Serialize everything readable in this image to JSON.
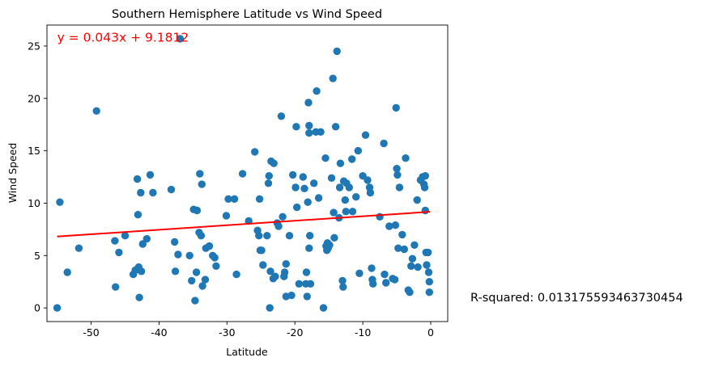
{
  "chart_data": {
    "type": "scatter",
    "title": "Southern Hemisphere Latitude vs Wind Speed",
    "xlabel": "Latitude",
    "ylabel": "Wind Speed",
    "xlim": [
      -56.5,
      2.5
    ],
    "ylim": [
      -1.3,
      27
    ],
    "xticks": [
      -50,
      -40,
      -30,
      -20,
      -10,
      0
    ],
    "yticks": [
      0,
      5,
      10,
      15,
      20,
      25
    ],
    "grid": false,
    "point_color": "#1f77b4",
    "regression": {
      "slope": 0.043,
      "intercept": 9.1812,
      "x_range": [
        -55,
        -0.1
      ],
      "color": "#ff0000",
      "equation_text": "y = 0.043x + 9.1812",
      "equation_position": [
        -55,
        25.8
      ]
    },
    "r_squared_text": "R-squared: 0.013175593463730454",
    "points": [
      [
        -55.0,
        0.0
      ],
      [
        -54.6,
        10.1
      ],
      [
        -53.5,
        3.4
      ],
      [
        -51.8,
        5.7
      ],
      [
        -49.2,
        18.8
      ],
      [
        -46.5,
        6.4
      ],
      [
        -46.4,
        2.0
      ],
      [
        -45.9,
        5.3
      ],
      [
        -45.0,
        6.9
      ],
      [
        -43.8,
        3.2
      ],
      [
        -43.5,
        3.6
      ],
      [
        -43.2,
        12.3
      ],
      [
        -43.1,
        8.9
      ],
      [
        -43.0,
        3.9
      ],
      [
        -42.9,
        1.0
      ],
      [
        -42.7,
        11.0
      ],
      [
        -42.6,
        3.5
      ],
      [
        -42.4,
        6.1
      ],
      [
        -41.8,
        6.6
      ],
      [
        -41.3,
        12.7
      ],
      [
        -40.9,
        11.0
      ],
      [
        -38.2,
        11.3
      ],
      [
        -37.7,
        6.3
      ],
      [
        -37.6,
        3.5
      ],
      [
        -37.2,
        5.1
      ],
      [
        -36.9,
        25.7
      ],
      [
        -35.5,
        5.0
      ],
      [
        -35.2,
        2.6
      ],
      [
        -34.9,
        9.4
      ],
      [
        -34.7,
        0.7
      ],
      [
        -34.5,
        3.4
      ],
      [
        -34.4,
        9.3
      ],
      [
        -34.1,
        7.2
      ],
      [
        -34.0,
        12.8
      ],
      [
        -33.8,
        6.9
      ],
      [
        -33.7,
        11.8
      ],
      [
        -33.6,
        2.1
      ],
      [
        -33.2,
        2.7
      ],
      [
        -33.1,
        5.7
      ],
      [
        -32.6,
        5.9
      ],
      [
        -32.1,
        5.0
      ],
      [
        -31.8,
        4.8
      ],
      [
        -31.6,
        4.0
      ],
      [
        -30.1,
        8.8
      ],
      [
        -29.8,
        10.4
      ],
      [
        -28.9,
        10.4
      ],
      [
        -28.6,
        3.2
      ],
      [
        -27.7,
        12.8
      ],
      [
        -26.8,
        8.3
      ],
      [
        -25.9,
        14.9
      ],
      [
        -25.5,
        7.4
      ],
      [
        -25.3,
        6.9
      ],
      [
        -25.2,
        10.4
      ],
      [
        -25.1,
        5.5
      ],
      [
        -24.9,
        5.5
      ],
      [
        -24.7,
        4.1
      ],
      [
        -24.1,
        6.9
      ],
      [
        -23.9,
        11.9
      ],
      [
        -23.8,
        12.6
      ],
      [
        -23.7,
        0.0
      ],
      [
        -23.6,
        3.5
      ],
      [
        -23.5,
        14.0
      ],
      [
        -23.2,
        2.8
      ],
      [
        -23.1,
        13.8
      ],
      [
        -22.9,
        3.0
      ],
      [
        -22.6,
        8.1
      ],
      [
        -22.4,
        7.8
      ],
      [
        -22.0,
        18.3
      ],
      [
        -21.8,
        8.7
      ],
      [
        -21.6,
        3.0
      ],
      [
        -21.5,
        3.4
      ],
      [
        -21.3,
        4.2
      ],
      [
        -21.3,
        1.1
      ],
      [
        -20.8,
        6.9
      ],
      [
        -20.5,
        1.2
      ],
      [
        -20.3,
        12.7
      ],
      [
        -19.9,
        11.5
      ],
      [
        -19.8,
        17.3
      ],
      [
        -19.7,
        9.6
      ],
      [
        -19.4,
        2.3
      ],
      [
        -18.8,
        12.5
      ],
      [
        -18.6,
        11.4
      ],
      [
        -18.4,
        2.3
      ],
      [
        -18.3,
        3.4
      ],
      [
        -18.2,
        1.1
      ],
      [
        -18.1,
        10.1
      ],
      [
        -18.0,
        19.6
      ],
      [
        -17.9,
        17.4
      ],
      [
        -17.9,
        16.7
      ],
      [
        -17.9,
        5.7
      ],
      [
        -17.8,
        6.9
      ],
      [
        -17.7,
        2.3
      ],
      [
        -17.2,
        11.9
      ],
      [
        -16.9,
        16.8
      ],
      [
        -16.8,
        20.7
      ],
      [
        -16.5,
        10.5
      ],
      [
        -16.2,
        16.8
      ],
      [
        -15.8,
        0.0
      ],
      [
        -15.5,
        14.3
      ],
      [
        -15.4,
        5.9
      ],
      [
        -15.3,
        5.5
      ],
      [
        -15.2,
        6.2
      ],
      [
        -15.1,
        5.7
      ],
      [
        -14.9,
        6.0
      ],
      [
        -14.6,
        12.4
      ],
      [
        -14.4,
        21.9
      ],
      [
        -14.3,
        9.1
      ],
      [
        -14.2,
        6.7
      ],
      [
        -14.0,
        17.3
      ],
      [
        -13.8,
        24.5
      ],
      [
        -13.5,
        8.6
      ],
      [
        -13.4,
        11.5
      ],
      [
        -13.3,
        13.8
      ],
      [
        -13.0,
        2.6
      ],
      [
        -12.9,
        2.0
      ],
      [
        -12.8,
        12.1
      ],
      [
        -12.6,
        10.3
      ],
      [
        -12.5,
        9.2
      ],
      [
        -12.4,
        11.9
      ],
      [
        -12.0,
        11.5
      ],
      [
        -11.6,
        14.2
      ],
      [
        -11.5,
        9.2
      ],
      [
        -11.0,
        10.6
      ],
      [
        -10.7,
        15.0
      ],
      [
        -10.5,
        3.3
      ],
      [
        -10.0,
        12.6
      ],
      [
        -9.6,
        16.5
      ],
      [
        -9.3,
        12.2
      ],
      [
        -9.0,
        11.5
      ],
      [
        -8.9,
        11.0
      ],
      [
        -8.7,
        3.8
      ],
      [
        -8.6,
        2.7
      ],
      [
        -8.5,
        2.3
      ],
      [
        -7.5,
        8.7
      ],
      [
        -6.9,
        15.7
      ],
      [
        -6.8,
        3.2
      ],
      [
        -6.6,
        2.4
      ],
      [
        -6.1,
        7.8
      ],
      [
        -5.6,
        2.8
      ],
      [
        -5.3,
        2.7
      ],
      [
        -5.2,
        7.9
      ],
      [
        -5.1,
        19.1
      ],
      [
        -5.0,
        13.3
      ],
      [
        -4.9,
        12.7
      ],
      [
        -4.8,
        5.7
      ],
      [
        -4.6,
        11.5
      ],
      [
        -4.2,
        7.0
      ],
      [
        -3.9,
        5.6
      ],
      [
        -3.7,
        14.3
      ],
      [
        -3.3,
        1.7
      ],
      [
        -3.1,
        1.5
      ],
      [
        -2.9,
        4.0
      ],
      [
        -2.7,
        4.7
      ],
      [
        -2.4,
        6.0
      ],
      [
        -2.0,
        10.3
      ],
      [
        -1.9,
        3.9
      ],
      [
        -1.5,
        12.2
      ],
      [
        -1.2,
        12.5
      ],
      [
        -1.0,
        11.8
      ],
      [
        -0.9,
        11.5
      ],
      [
        -0.8,
        12.6
      ],
      [
        -0.7,
        5.3
      ],
      [
        -0.8,
        9.3
      ],
      [
        -0.6,
        4.1
      ],
      [
        -0.4,
        5.3
      ],
      [
        -0.3,
        3.4
      ],
      [
        -0.2,
        2.5
      ],
      [
        -0.2,
        1.5
      ]
    ]
  }
}
